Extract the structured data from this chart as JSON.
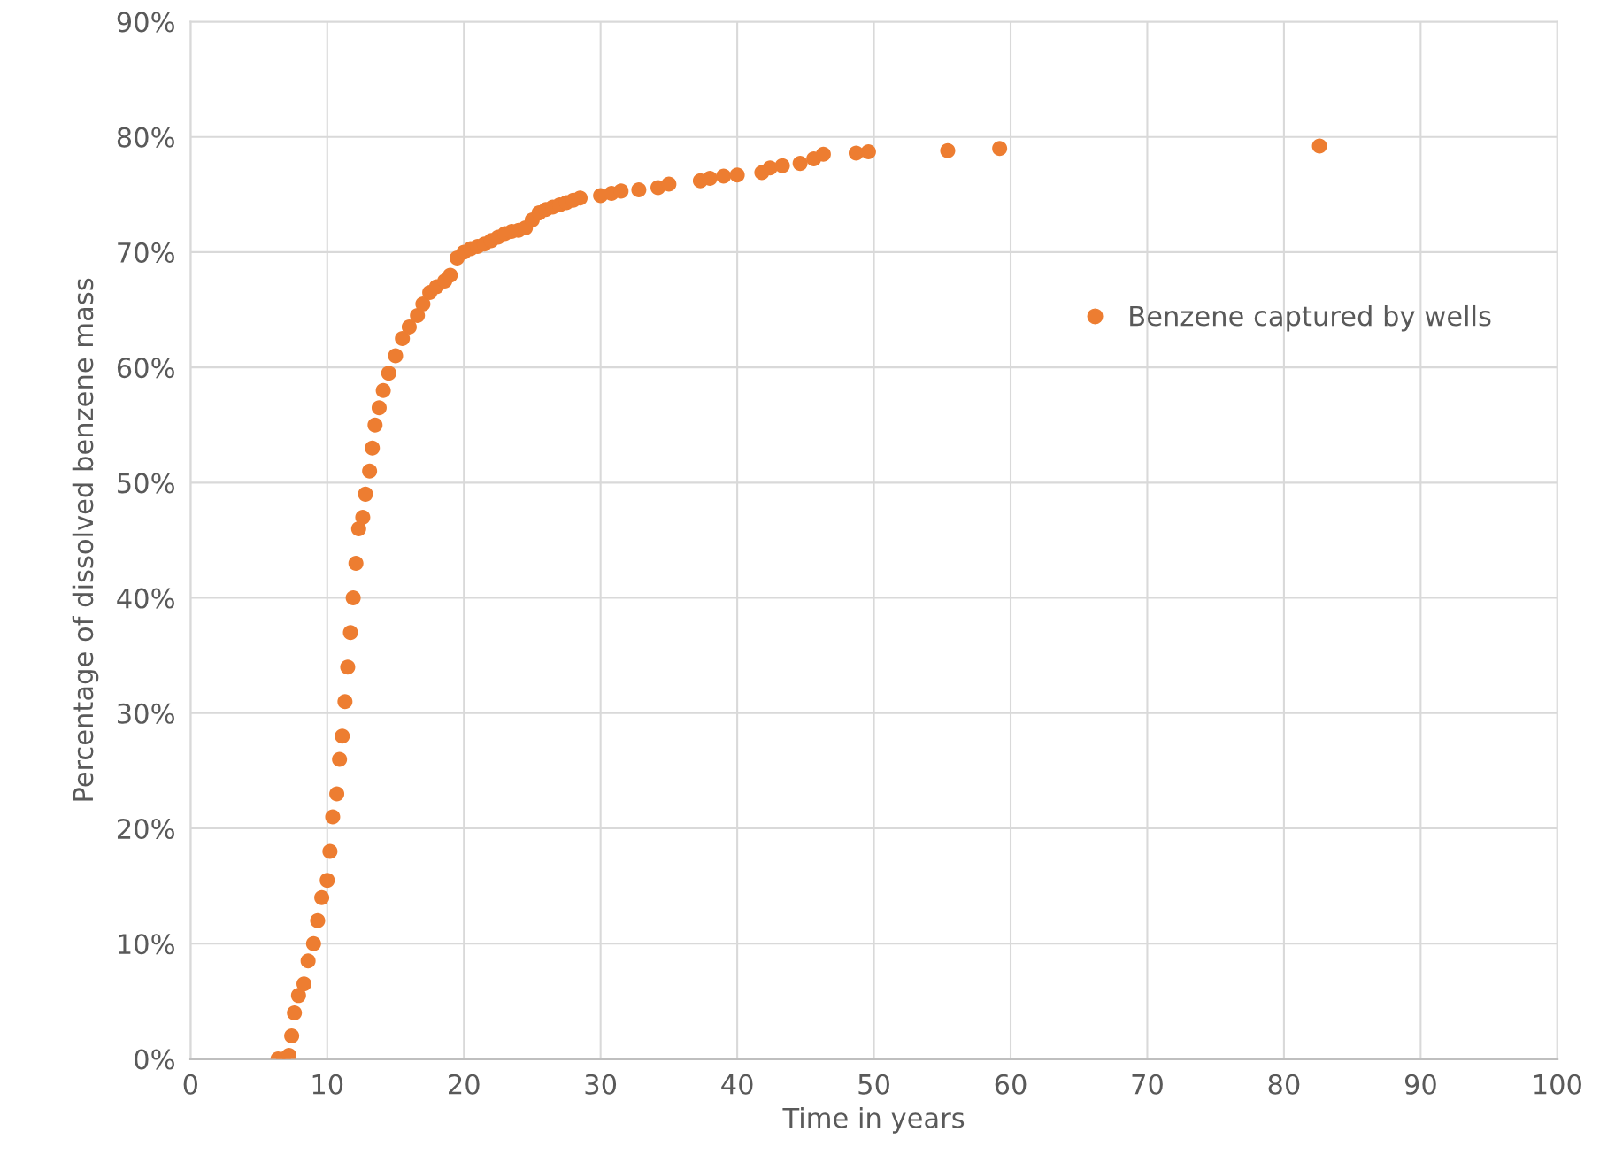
{
  "chart_data": {
    "type": "scatter",
    "xlabel": "Time in years",
    "ylabel": "Percentage of dissolved benzene mass",
    "xlim": [
      0,
      100
    ],
    "xticks": [
      0,
      10,
      20,
      30,
      40,
      50,
      60,
      70,
      80,
      90,
      100
    ],
    "ylim": [
      0,
      90
    ],
    "yticks": [
      {
        "value": 0,
        "label": "0%"
      },
      {
        "value": 10,
        "label": "10%"
      },
      {
        "value": 20,
        "label": "20%"
      },
      {
        "value": 30,
        "label": "30%"
      },
      {
        "value": 40,
        "label": "40%"
      },
      {
        "value": 50,
        "label": "50%"
      },
      {
        "value": 60,
        "label": "60%"
      },
      {
        "value": 70,
        "label": "70%"
      },
      {
        "value": 80,
        "label": "80%"
      },
      {
        "value": 90,
        "label": "90%"
      }
    ],
    "grid": true,
    "legend": "top right",
    "marker": "circle",
    "series": [
      {
        "name": "Benzene captured by wells",
        "color": "#ed7d31",
        "x": [
          6.4,
          6.8,
          7.2,
          7.4,
          7.6,
          7.9,
          8.3,
          8.6,
          9.0,
          9.3,
          9.6,
          10.0,
          10.2,
          10.4,
          10.7,
          10.9,
          11.1,
          11.3,
          11.5,
          11.7,
          11.9,
          12.1,
          12.3,
          12.6,
          12.8,
          13.1,
          13.3,
          13.5,
          13.8,
          14.1,
          14.5,
          15.0,
          15.5,
          16.0,
          16.6,
          17.0,
          17.5,
          18.0,
          18.6,
          19.0,
          19.5,
          20.0,
          20.5,
          21.0,
          21.5,
          22.0,
          22.5,
          23.0,
          23.5,
          24.0,
          24.5,
          25.0,
          25.5,
          26.0,
          26.5,
          27.0,
          27.5,
          28.0,
          28.5,
          30.0,
          30.8,
          31.5,
          32.8,
          34.2,
          35.0,
          37.3,
          38.0,
          39.0,
          40.0,
          41.8,
          42.4,
          43.3,
          44.6,
          45.6,
          46.3,
          48.7,
          49.6,
          55.4,
          59.2,
          82.6
        ],
        "values": [
          0,
          0,
          0.3,
          2,
          4,
          5.5,
          6.5,
          8.5,
          10,
          12,
          14,
          15.5,
          18,
          21,
          23,
          26,
          28,
          31,
          34,
          37,
          40,
          43,
          46,
          47,
          49,
          51,
          53,
          55,
          56.5,
          58,
          59.5,
          61,
          62.5,
          63.5,
          64.5,
          65.5,
          66.5,
          67,
          67.5,
          68,
          69.5,
          70,
          70.3,
          70.5,
          70.7,
          71,
          71.3,
          71.6,
          71.8,
          71.9,
          72.1,
          72.8,
          73.4,
          73.7,
          73.9,
          74.1,
          74.3,
          74.5,
          74.7,
          74.9,
          75.1,
          75.3,
          75.4,
          75.6,
          75.9,
          76.2,
          76.4,
          76.6,
          76.7,
          76.9,
          77.3,
          77.5,
          77.7,
          78.1,
          78.5,
          78.6,
          78.7,
          78.8,
          79.0,
          79.2
        ]
      }
    ]
  }
}
